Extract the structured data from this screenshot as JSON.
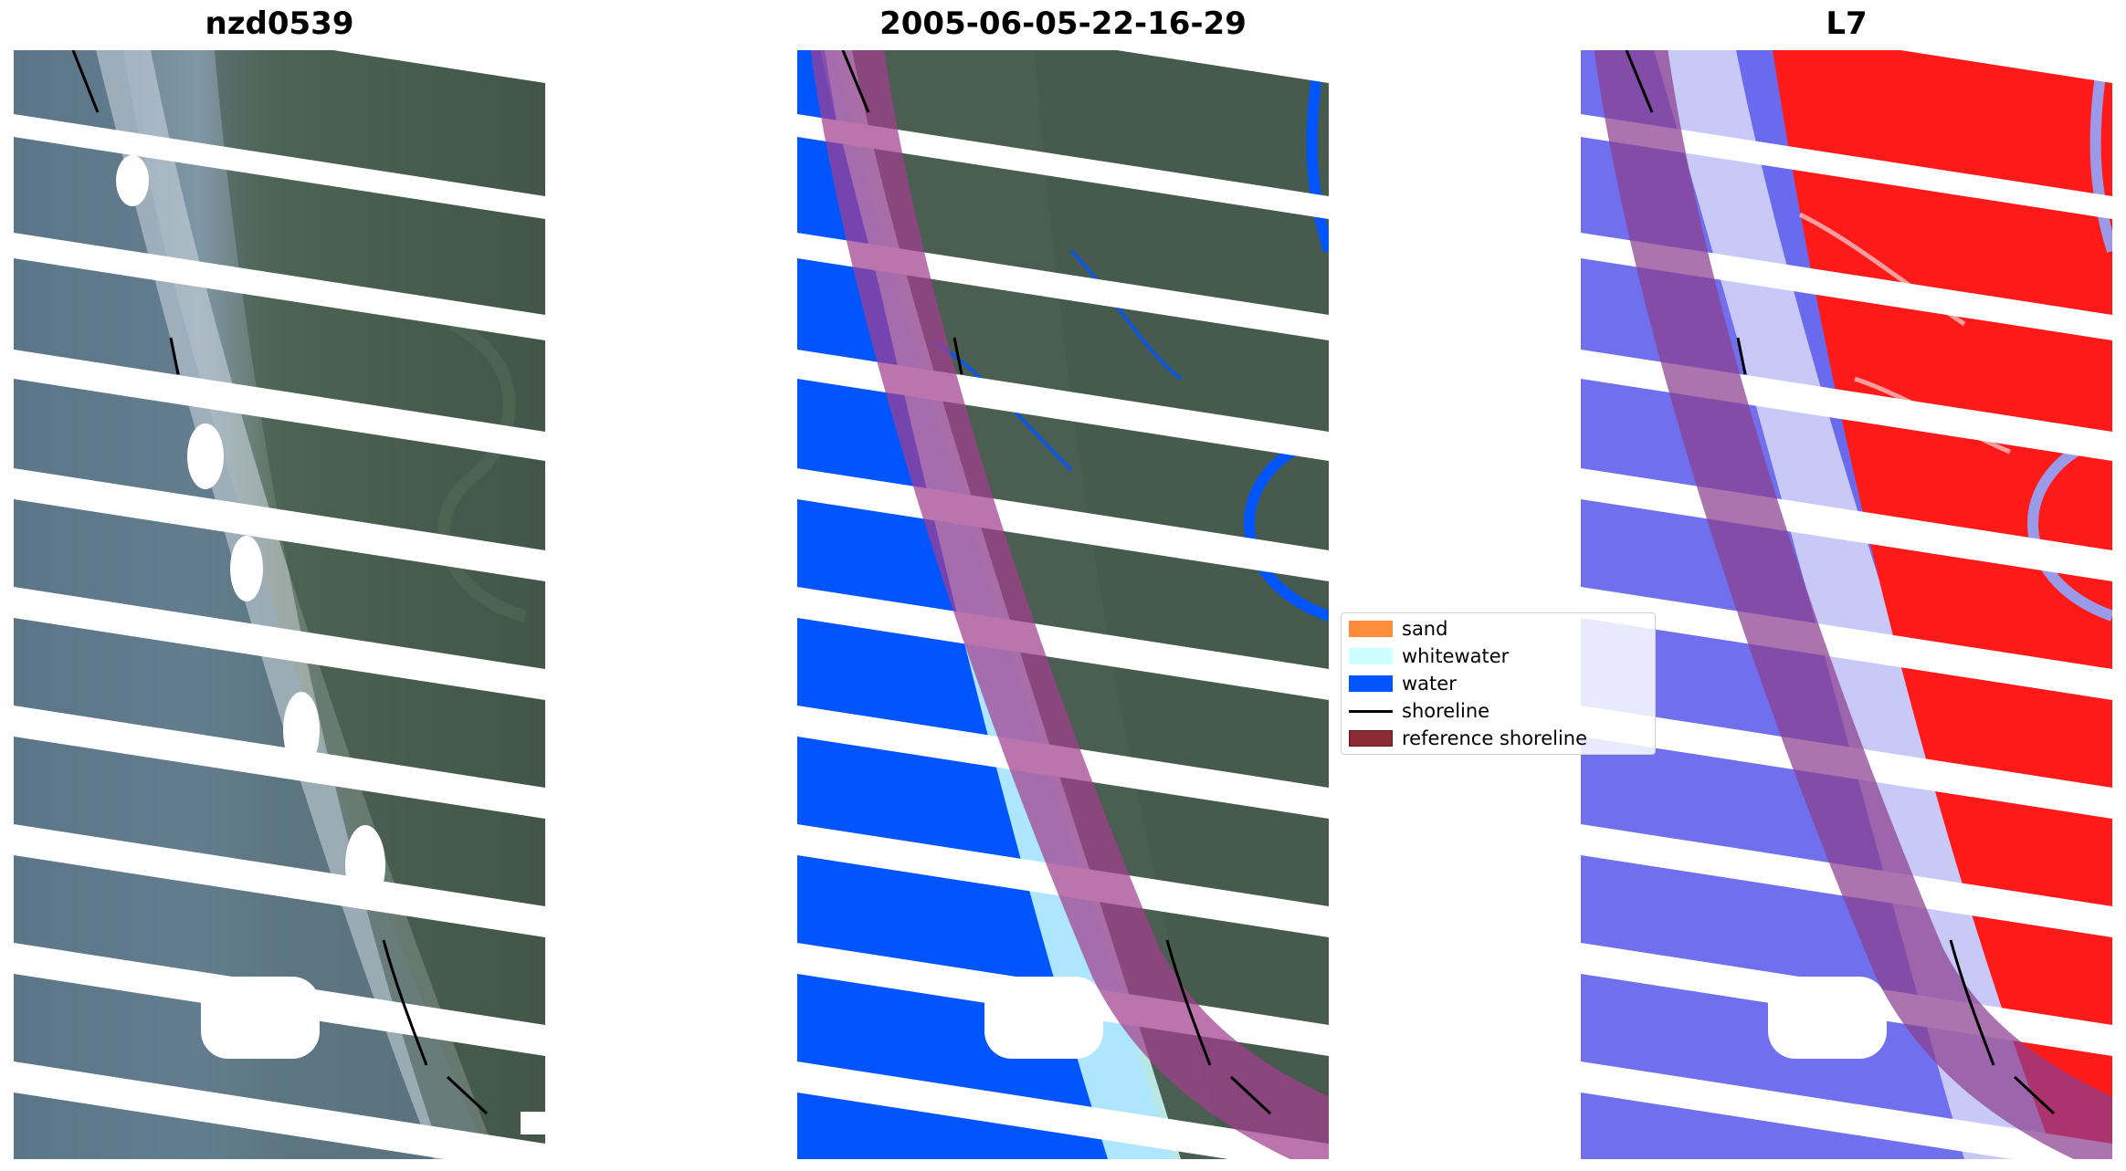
{
  "panels": [
    {
      "id": "rgb",
      "title": "nzd0539"
    },
    {
      "id": "classified",
      "title": "2005-06-05-22-16-29"
    },
    {
      "id": "index",
      "title": "L7"
    }
  ],
  "legend": {
    "items": [
      {
        "label": "sand",
        "color": "#ff8c3a",
        "kind": "patch"
      },
      {
        "label": "whitewater",
        "color": "#ccffff",
        "kind": "patch"
      },
      {
        "label": "water",
        "color": "#0055ff",
        "kind": "patch"
      },
      {
        "label": "shoreline",
        "color": "#000000",
        "kind": "line"
      },
      {
        "label": "reference shoreline",
        "color": "#8b2a33",
        "kind": "patch"
      }
    ]
  },
  "colors": {
    "gap_stripe": "#ffffff",
    "reference_band": "#a23f8f",
    "land_rgb": "#4a5e52",
    "sea_rgb": "#5f7788",
    "water_class": "#0055ff",
    "whitewater_class": "#ccffff",
    "index_positive": "#ff1a1a",
    "index_negative": "#6a6aee"
  }
}
